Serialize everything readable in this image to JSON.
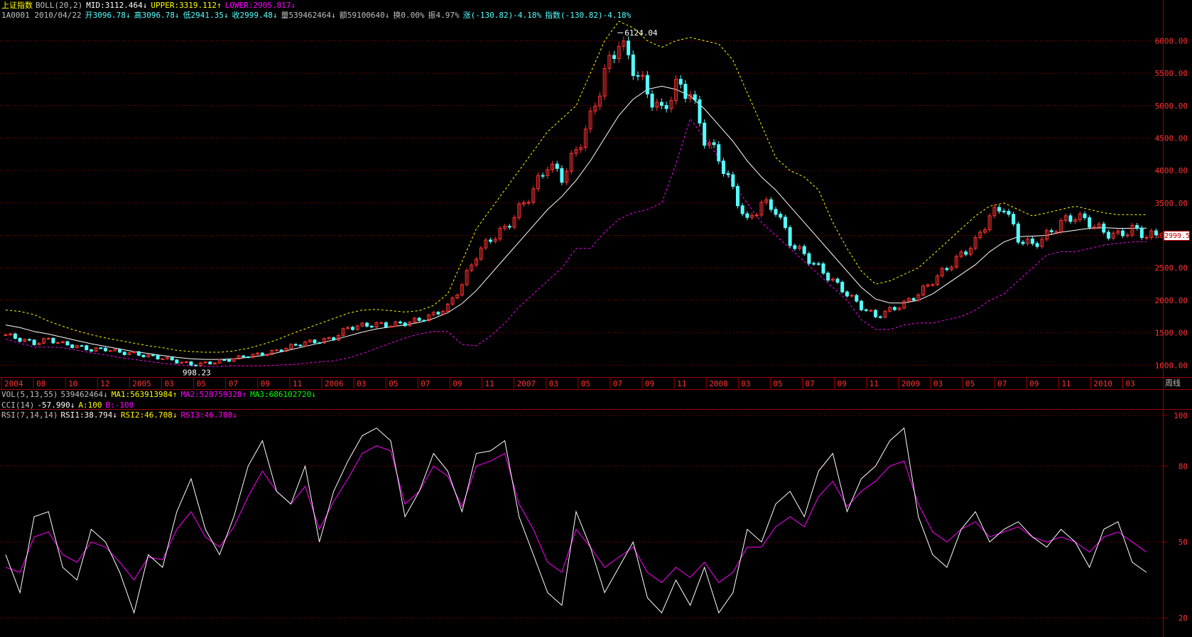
{
  "header": {
    "index_name": "上证指数",
    "boll_label": "BOLL(20,2)",
    "mid": "MID:3112.464↓",
    "upper": "UPPER:3319.112↑",
    "lower": "LOWER:2905.817↓"
  },
  "quote": {
    "code_date": "1A0001 2010/04/22",
    "open": "开3096.78↓",
    "high": "高3096.78↓",
    "low": "低2941.35↓",
    "close": "收2999.48↓",
    "volume": "量539462464↓",
    "amount": "额59100640↓",
    "turnover": "换0.00%",
    "amplitude": "振4.97%",
    "change": "涨(-130.82)-4.18%",
    "index_change": "指数(-130.82)-4.18%"
  },
  "indicators": {
    "vol_label": "VOL(5,13,55)",
    "vol_value": "539462464↓",
    "ma1": "MA1:563913984↑",
    "ma2": "MA2:528759328↑",
    "ma3": "MA3:686102720↓",
    "cci_label": "CCI(14)",
    "cci_value": "-57.990↓",
    "cci_a": "A:100",
    "cci_b": "B:-100",
    "rsi_label": "RSI(7,14,14)",
    "rsi1": "RSI1:38.794↓",
    "rsi2": "RSI2:46.708↓",
    "rsi3": "RSI3:46.708↓"
  },
  "price_tag": "2999.5",
  "period_label": "周线",
  "colors": {
    "up": "#ff3232",
    "down": "#54ffff",
    "mid": "#ffffff",
    "upper": "#ffff00",
    "lower": "#ff00ff",
    "grid": "#a00000",
    "axis_text": "#ff3232",
    "text_white": "#c0c0c0"
  },
  "chart_data": [
    {
      "type": "candlestick",
      "title": "上证指数",
      "ylim": [
        850,
        6300
      ],
      "y_ticks": [
        "1000.00",
        "1500.00",
        "2000.00",
        "2500.00",
        "3000.00",
        "3500.00",
        "4000.00",
        "4500.00",
        "5000.00",
        "5500.00",
        "6000.00"
      ],
      "x_ticks": [
        "2004",
        "08",
        "10",
        "12",
        "2005",
        "03",
        "05",
        "07",
        "09",
        "11",
        "2006",
        "03",
        "05",
        "07",
        "09",
        "11",
        "2007",
        "03",
        "05",
        "07",
        "09",
        "11",
        "2008",
        "03",
        "05",
        "07",
        "09",
        "11",
        "2009",
        "03",
        "05",
        "07",
        "09",
        "11",
        "2010",
        "03"
      ],
      "annotations": [
        {
          "label": "6124.04"
        },
        {
          "label": "998.23"
        }
      ],
      "series": [
        {
          "name": "close",
          "values": [
            1470,
            1400,
            1340,
            1400,
            1330,
            1290,
            1240,
            1250,
            1200,
            1180,
            1140,
            1110,
            1060,
            1010,
            1030,
            1060,
            1100,
            1150,
            1170,
            1220,
            1290,
            1350,
            1370,
            1420,
            1580,
            1610,
            1630,
            1620,
            1650,
            1700,
            1780,
            1900,
            2250,
            2700,
            2950,
            3100,
            3400,
            3700,
            4100,
            3900,
            4300,
            4800,
            5500,
            6000,
            5600,
            5200,
            4900,
            5300,
            5200,
            4500,
            4200,
            3700,
            3200,
            3500,
            3400,
            2900,
            2700,
            2500,
            2300,
            2100,
            1900,
            1750,
            1850,
            1950,
            2100,
            2300,
            2500,
            2700,
            2900,
            3300,
            3450,
            2950,
            2850,
            3000,
            3200,
            3300,
            3200,
            3050,
            3000,
            3100,
            2999
          ]
        },
        {
          "name": "MID",
          "values": [
            1620,
            1580,
            1520,
            1480,
            1430,
            1380,
            1330,
            1290,
            1250,
            1210,
            1180,
            1150,
            1120,
            1100,
            1090,
            1090,
            1100,
            1120,
            1150,
            1190,
            1240,
            1290,
            1340,
            1390,
            1450,
            1510,
            1560,
            1590,
            1620,
            1660,
            1720,
            1810,
            1950,
            2150,
            2400,
            2650,
            2900,
            3150,
            3400,
            3600,
            3850,
            4150,
            4500,
            4850,
            5100,
            5250,
            5300,
            5250,
            5150,
            4950,
            4700,
            4450,
            4150,
            3900,
            3700,
            3450,
            3200,
            2950,
            2700,
            2450,
            2200,
            2020,
            1960,
            1960,
            2000,
            2100,
            2250,
            2400,
            2550,
            2750,
            2900,
            2980,
            2990,
            3000,
            3050,
            3080,
            3110,
            3120,
            3110,
            3110,
            3112
          ]
        },
        {
          "name": "UPPER",
          "values": [
            1850,
            1830,
            1780,
            1680,
            1600,
            1530,
            1470,
            1420,
            1380,
            1340,
            1300,
            1270,
            1230,
            1210,
            1200,
            1200,
            1220,
            1260,
            1320,
            1390,
            1480,
            1560,
            1640,
            1720,
            1800,
            1850,
            1860,
            1840,
            1820,
            1840,
            1920,
            2100,
            2600,
            3100,
            3400,
            3700,
            4000,
            4300,
            4600,
            4800,
            5000,
            5500,
            6000,
            6300,
            6200,
            6000,
            5900,
            6000,
            6050,
            6000,
            5950,
            5700,
            5200,
            4700,
            4200,
            4000,
            3900,
            3700,
            3200,
            2800,
            2450,
            2250,
            2300,
            2400,
            2500,
            2700,
            2900,
            3100,
            3300,
            3450,
            3500,
            3400,
            3300,
            3350,
            3400,
            3450,
            3400,
            3350,
            3320,
            3320,
            3319
          ]
        },
        {
          "name": "LOWER",
          "values": [
            1400,
            1340,
            1280,
            1280,
            1270,
            1230,
            1190,
            1160,
            1120,
            1090,
            1060,
            1030,
            1010,
            990,
            980,
            980,
            990,
            990,
            990,
            1000,
            1010,
            1030,
            1050,
            1070,
            1110,
            1180,
            1260,
            1340,
            1420,
            1480,
            1520,
            1520,
            1320,
            1300,
            1450,
            1650,
            1900,
            2100,
            2300,
            2500,
            2800,
            2800,
            3050,
            3250,
            3350,
            3400,
            3500,
            4100,
            4800,
            4500,
            4200,
            3800,
            3500,
            3200,
            3000,
            2800,
            2600,
            2400,
            2200,
            2000,
            1700,
            1550,
            1550,
            1620,
            1650,
            1650,
            1700,
            1750,
            1850,
            2000,
            2100,
            2300,
            2500,
            2700,
            2750,
            2750,
            2800,
            2850,
            2880,
            2900,
            2905
          ]
        }
      ]
    },
    {
      "type": "line",
      "title": "RSI(7,14,14)",
      "ylim": [
        15,
        100
      ],
      "y_ticks": [
        "20",
        "50",
        "80",
        "100"
      ],
      "series": [
        {
          "name": "RSI1",
          "values": [
            45,
            30,
            60,
            62,
            40,
            35,
            55,
            50,
            38,
            22,
            45,
            40,
            62,
            75,
            55,
            45,
            60,
            80,
            90,
            70,
            65,
            80,
            50,
            70,
            82,
            92,
            95,
            90,
            60,
            70,
            85,
            78,
            62,
            85,
            86,
            90,
            60,
            45,
            30,
            25,
            62,
            48,
            30,
            40,
            50,
            28,
            22,
            35,
            25,
            40,
            22,
            30,
            55,
            50,
            65,
            70,
            60,
            78,
            85,
            62,
            75,
            80,
            90,
            95,
            60,
            45,
            40,
            55,
            62,
            50,
            55,
            58,
            52,
            48,
            55,
            50,
            40,
            55,
            58,
            42,
            38
          ]
        },
        {
          "name": "RSI2",
          "values": [
            40,
            38,
            52,
            54,
            45,
            42,
            50,
            48,
            42,
            35,
            44,
            43,
            55,
            62,
            52,
            48,
            56,
            68,
            78,
            70,
            65,
            72,
            55,
            66,
            75,
            85,
            88,
            86,
            65,
            70,
            80,
            76,
            64,
            80,
            82,
            85,
            65,
            55,
            42,
            38,
            55,
            48,
            40,
            44,
            48,
            38,
            34,
            40,
            36,
            42,
            34,
            38,
            48,
            48,
            56,
            60,
            56,
            68,
            74,
            64,
            70,
            74,
            80,
            82,
            65,
            54,
            50,
            55,
            58,
            52,
            54,
            56,
            52,
            50,
            52,
            50,
            46,
            52,
            54,
            50,
            46
          ]
        }
      ]
    }
  ]
}
